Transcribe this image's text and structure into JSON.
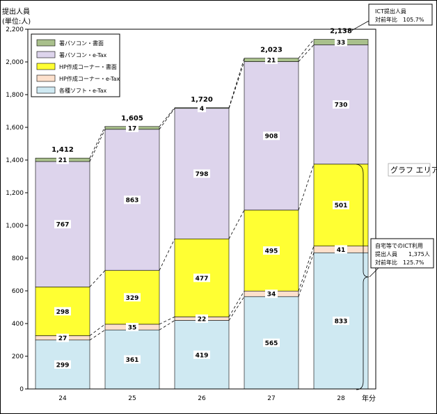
{
  "chart_data": {
    "type": "stacked-bar",
    "title": "",
    "ylabel_line1": "提出人員",
    "ylabel_line2": "(単位:人)",
    "xlabel": "年分",
    "ylim": [
      0,
      2200
    ],
    "ytick_step": 200,
    "ytick_labels": [
      "0",
      "200",
      "400",
      "600",
      "800",
      "1,000",
      "1,200",
      "1,400",
      "1,600",
      "1,800",
      "2,000",
      "2,200"
    ],
    "categories": [
      "24",
      "25",
      "26",
      "27",
      "28"
    ],
    "series": [
      {
        "name": "各種ソフト・e-Tax",
        "color": "#cfe9f2",
        "values": [
          299,
          361,
          419,
          565,
          833
        ],
        "labels": [
          "299",
          "361",
          "419",
          "565",
          "833"
        ]
      },
      {
        "name": "HP作成コーナー・e-Tax",
        "color": "#fde0cc",
        "values": [
          27,
          35,
          22,
          34,
          41
        ],
        "labels": [
          "27",
          "35",
          "22",
          "34",
          "41"
        ]
      },
      {
        "name": "HP作成コーナー・書面",
        "color": "#ffff33",
        "values": [
          298,
          329,
          477,
          495,
          501
        ],
        "labels": [
          "298",
          "329",
          "477",
          "495",
          "501"
        ]
      },
      {
        "name": "署パソコン・e-Tax",
        "color": "#ddd4ec",
        "values": [
          767,
          863,
          798,
          908,
          730
        ],
        "labels": [
          "767",
          "863",
          "798",
          "908",
          "730"
        ]
      },
      {
        "name": "署パソコン・書面",
        "color": "#a9c08c",
        "values": [
          21,
          17,
          4,
          21,
          33
        ],
        "labels": [
          "21",
          "17",
          "4",
          "21",
          "33"
        ]
      }
    ],
    "totals": [
      1412,
      1605,
      1720,
      2023,
      2138
    ],
    "total_labels": [
      "1,412",
      "1,605",
      "1,720",
      "2,023",
      "2,138"
    ],
    "legend_position": "top-left",
    "legend_order": [
      4,
      3,
      2,
      1,
      0
    ]
  },
  "annotations": {
    "top_callout": {
      "line1": "ICT提出人員",
      "line2": "対前年比　105.7%"
    },
    "right_callout": {
      "line1": "自宅等でのICT利用",
      "line2": "提出人員　　1,375人",
      "line3": "対前年比　125.7%"
    },
    "area_label": "グラフ エリア"
  }
}
